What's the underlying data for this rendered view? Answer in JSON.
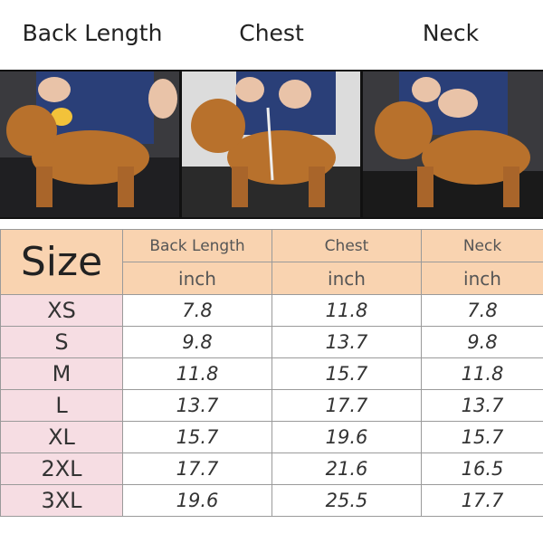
{
  "titles": [
    "Back Length",
    "Chest",
    "Neck"
  ],
  "table": {
    "size_header": "Size",
    "columns": [
      "Back Length",
      "Chest",
      "Neck"
    ],
    "units": [
      "inch",
      "inch",
      "inch"
    ],
    "rows": [
      {
        "size": "XS",
        "values": [
          "7.8",
          "11.8",
          "7.8"
        ]
      },
      {
        "size": "S",
        "values": [
          "9.8",
          "13.7",
          "9.8"
        ]
      },
      {
        "size": "M",
        "values": [
          "11.8",
          "15.7",
          "11.8"
        ]
      },
      {
        "size": "L",
        "values": [
          "13.7",
          "17.7",
          "13.7"
        ]
      },
      {
        "size": "XL",
        "values": [
          "15.7",
          "19.6",
          "15.7"
        ]
      },
      {
        "size": "2XL",
        "values": [
          "17.7",
          "21.6",
          "16.5"
        ]
      },
      {
        "size": "3XL",
        "values": [
          "19.6",
          "25.5",
          "17.7"
        ]
      }
    ]
  },
  "colors": {
    "header_bg": "#f9d3b0",
    "size_col_bg": "#f6dde3",
    "dog": "#b8712c"
  }
}
